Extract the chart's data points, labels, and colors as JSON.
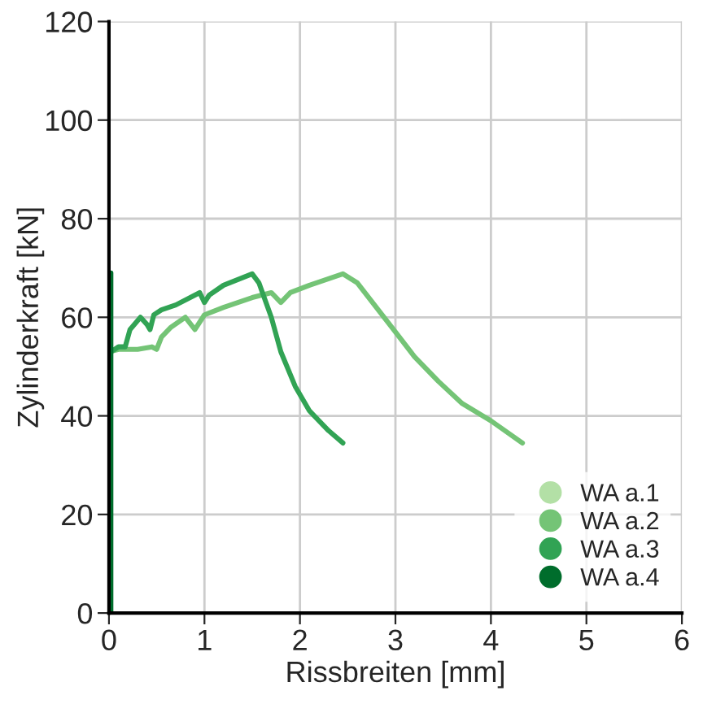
{
  "chart_data": {
    "type": "line",
    "xlabel": "Rissbreiten [mm]",
    "ylabel": "Zylinderkraft [kN]",
    "xlim": [
      0,
      6
    ],
    "xticks": [
      0,
      1,
      2,
      3,
      4,
      5,
      6
    ],
    "ylim": [
      0,
      120
    ],
    "yticks": [
      0,
      20,
      40,
      60,
      80,
      100,
      120
    ],
    "grid": true,
    "legend": "bottom right",
    "marker": "none",
    "line_style": "solid",
    "series": [
      {
        "name": "WA a.1",
        "color": "#b3e0a6"
      },
      {
        "name": "WA a.2",
        "color": "#74c476",
        "x": [
          0,
          0.1,
          0.3,
          0.45,
          0.5,
          0.55,
          0.65,
          0.8,
          0.9,
          1.0,
          1.2,
          1.5,
          1.7,
          1.8,
          1.9,
          2.1,
          2.45,
          2.6,
          2.8,
          3.0,
          3.2,
          3.45,
          3.7,
          4.0,
          4.33
        ],
        "values": [
          53,
          53.5,
          53.5,
          54,
          53.5,
          56,
          58,
          60,
          57.5,
          60.5,
          62,
          64,
          65,
          63,
          65,
          66.5,
          68.8,
          67,
          62,
          57,
          52,
          47,
          42.5,
          39,
          34.5
        ]
      },
      {
        "name": "WA a.3",
        "color": "#31a354",
        "x": [
          0.02,
          0.1,
          0.17,
          0.22,
          0.33,
          0.4,
          0.43,
          0.47,
          0.55,
          0.7,
          0.95,
          1.0,
          1.05,
          1.2,
          1.5,
          1.57,
          1.7,
          1.8,
          1.95,
          2.1,
          2.3,
          2.45
        ],
        "values": [
          53,
          54,
          54,
          57.5,
          60,
          58.5,
          57.5,
          60.5,
          61.5,
          62.5,
          65,
          63,
          64.5,
          66.5,
          68.8,
          67,
          60,
          53,
          46,
          41,
          37,
          34.5
        ]
      },
      {
        "name": "WA a.4",
        "color": "#006d2c",
        "x": [
          0.02,
          0.02
        ],
        "values": [
          0,
          69
        ]
      }
    ]
  }
}
